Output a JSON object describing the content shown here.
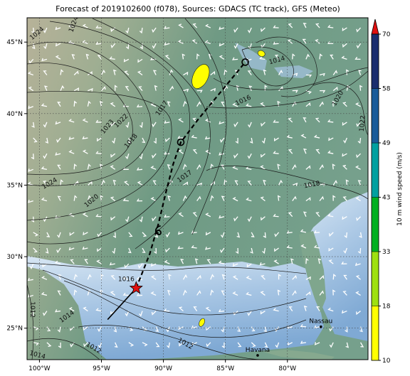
{
  "title": "Forecast of 2019102600 (f078), Sources: GDACS (TC track), GFS (Meteo)",
  "colors": {
    "land_low": "#6e9a84",
    "land_high": "#b8b39a",
    "ocean": "#c7dcee",
    "ocean_deep": "#8fb5da",
    "track": "#000000",
    "star": "#e01010",
    "wind_barb": "#ffffff"
  },
  "map": {
    "lon_range": [
      -101,
      -73.5
    ],
    "lat_range": [
      22.8,
      46.7
    ],
    "lon_ticks": [
      {
        "value": -100,
        "label": "100°W"
      },
      {
        "value": -95,
        "label": "95°W"
      },
      {
        "value": -90,
        "label": "90°W"
      },
      {
        "value": -85,
        "label": "85°W"
      },
      {
        "value": -80,
        "label": "80°W"
      }
    ],
    "lat_ticks": [
      {
        "value": 25,
        "label": "25°N"
      },
      {
        "value": 30,
        "label": "30°N"
      },
      {
        "value": 35,
        "label": "35°N"
      },
      {
        "value": 40,
        "label": "40°N"
      },
      {
        "value": 45,
        "label": "45°N"
      }
    ],
    "grid": true,
    "isobar_labels": [
      {
        "text": "1024",
        "lon": -100.1,
        "lat": 45.5,
        "rot": -40
      },
      {
        "text": "1024",
        "lon": -97.1,
        "lat": 46.2,
        "rot": -70
      },
      {
        "text": "1023",
        "lon": -94.4,
        "lat": 39.0,
        "rot": -50
      },
      {
        "text": "1022",
        "lon": -93.3,
        "lat": 39.4,
        "rot": -45
      },
      {
        "text": "1018",
        "lon": -92.5,
        "lat": 38.0,
        "rot": -50
      },
      {
        "text": "1017",
        "lon": -90.0,
        "lat": 40.3,
        "rot": -55
      },
      {
        "text": "1024",
        "lon": -99.1,
        "lat": 35.0,
        "rot": -30
      },
      {
        "text": "1020",
        "lon": -95.7,
        "lat": 33.8,
        "rot": -40
      },
      {
        "text": "1017",
        "lon": -88.2,
        "lat": 35.5,
        "rot": -35
      },
      {
        "text": "1016",
        "lon": -83.5,
        "lat": 40.8,
        "rot": -25
      },
      {
        "text": "1014",
        "lon": -80.8,
        "lat": 43.6,
        "rot": -15
      },
      {
        "text": "1018",
        "lon": -78.0,
        "lat": 34.9,
        "rot": -10
      },
      {
        "text": "1020",
        "lon": -75.8,
        "lat": 41.0,
        "rot": -60
      },
      {
        "text": "1022",
        "lon": -73.8,
        "lat": 39.3,
        "rot": -85
      },
      {
        "text": "1016",
        "lon": -93.0,
        "lat": 28.3,
        "rot": 0
      },
      {
        "text": "1014",
        "lon": -97.7,
        "lat": 25.7,
        "rot": -35
      },
      {
        "text": "1012",
        "lon": -100.7,
        "lat": 26.3,
        "rot": 90
      },
      {
        "text": "1012",
        "lon": -95.7,
        "lat": 23.5,
        "rot": 30
      },
      {
        "text": "1012",
        "lon": -88.3,
        "lat": 23.8,
        "rot": 30
      },
      {
        "text": "1014",
        "lon": -100.2,
        "lat": 23.0,
        "rot": 15
      }
    ],
    "places": [
      {
        "name": "Havana",
        "lon": -82.4,
        "lat": 23.1
      },
      {
        "name": "Nassau",
        "lon": -77.3,
        "lat": 25.1
      }
    ]
  },
  "track": {
    "past": [
      [
        -94.5,
        25.6
      ],
      [
        -92.2,
        27.8
      ]
    ],
    "forecast": [
      [
        -92.2,
        27.8
      ],
      [
        -91.1,
        30.2
      ],
      [
        -90.4,
        32.3
      ],
      [
        -89.8,
        34.5
      ],
      [
        -89.2,
        36.5
      ],
      [
        -88.6,
        38.0
      ],
      [
        -87.2,
        39.6
      ],
      [
        -85.2,
        41.7
      ],
      [
        -83.4,
        43.6
      ]
    ],
    "star": {
      "lon": -92.2,
      "lat": 27.8
    },
    "markers": [
      {
        "symbol": "tropical-storm-symbol",
        "lon": -90.4,
        "lat": 31.8
      },
      {
        "symbol": "extratropical-low-symbol",
        "lon": -88.6,
        "lat": 38.0
      },
      {
        "symbol": "extratropical-low-symbol",
        "lon": -83.4,
        "lat": 43.6
      }
    ]
  },
  "wind_patches": [
    {
      "lon": -87.0,
      "lat": 42.6,
      "rx": 0.6,
      "ry": 0.9
    },
    {
      "lon": -82.1,
      "lat": 44.2,
      "rx": 0.3,
      "ry": 0.2
    },
    {
      "lon": -86.9,
      "lat": 25.4,
      "rx": 0.2,
      "ry": 0.3
    }
  ],
  "colorbar": {
    "label": "10 m wind speed (m/s)",
    "ticks": [
      "10",
      "18",
      "33",
      "43",
      "49",
      "58",
      "70"
    ],
    "colors": [
      "#ffff00",
      "#9ee010",
      "#00b020",
      "#00a0a0",
      "#1a5c9a",
      "#1a2d6e"
    ],
    "extend_color": "#e01010"
  }
}
